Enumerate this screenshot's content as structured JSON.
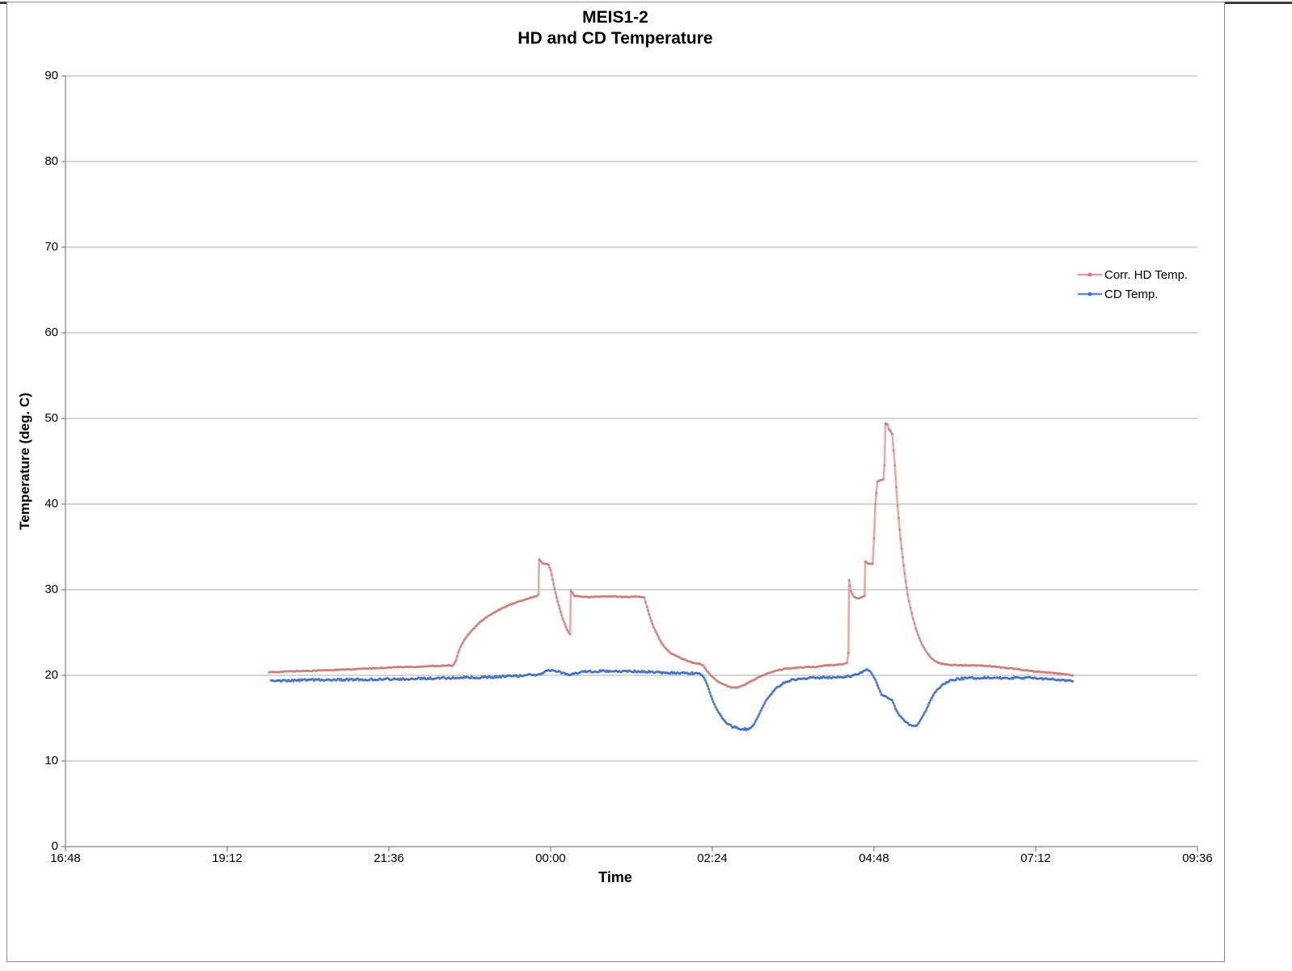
{
  "chart": {
    "title_line1": "MEIS1-2",
    "title_line2": "HD and CD Temperature",
    "x_axis_title": "Time",
    "y_axis_title": "Temperature (deg. C)"
  },
  "colors": {
    "grid": "#a9a9a9",
    "axis": "#7f7f7f",
    "hd_line": "#df9e9c",
    "hd_marker": "#c47a78",
    "cd_line": "#5b89d2",
    "cd_marker": "#3e6db8"
  },
  "chart_data": {
    "type": "line",
    "title": "MEIS1-2 HD and CD Temperature",
    "xlabel": "Time",
    "ylabel": "Temperature (deg. C)",
    "x_unit": "time of day (hours; values past 24 are after midnight)",
    "xlim_hours": [
      16.8,
      33.6
    ],
    "ylim": [
      0,
      90
    ],
    "y_ticks": [
      0,
      10,
      20,
      30,
      40,
      50,
      60,
      70,
      80,
      90
    ],
    "x_tick_labels": [
      "16:48",
      "19:12",
      "21:36",
      "00:00",
      "02:24",
      "04:48",
      "07:12",
      "09:36"
    ],
    "grid": "horizontal",
    "legend_position": "inside-right",
    "marker": "dot",
    "series": [
      {
        "name": "Corr. HD Temp.",
        "data_name": "corr-hd-temp-series",
        "line_color": "#df9e9c",
        "marker_color": "#c47a78",
        "noise": 0.05,
        "points": [
          [
            19.82,
            20.35
          ],
          [
            20.1,
            20.45
          ],
          [
            20.5,
            20.55
          ],
          [
            20.9,
            20.65
          ],
          [
            21.3,
            20.8
          ],
          [
            21.7,
            20.95
          ],
          [
            22.0,
            21.0
          ],
          [
            22.3,
            21.1
          ],
          [
            22.55,
            21.15
          ],
          [
            22.6,
            21.8
          ],
          [
            22.63,
            22.7
          ],
          [
            22.68,
            23.6
          ],
          [
            22.75,
            24.5
          ],
          [
            22.85,
            25.4
          ],
          [
            22.95,
            26.2
          ],
          [
            23.05,
            26.8
          ],
          [
            23.2,
            27.5
          ],
          [
            23.35,
            28.1
          ],
          [
            23.5,
            28.55
          ],
          [
            23.65,
            28.9
          ],
          [
            23.8,
            29.3
          ],
          [
            23.82,
            29.45
          ],
          [
            23.83,
            33.55
          ],
          [
            23.88,
            33.1
          ],
          [
            23.93,
            33.0
          ],
          [
            23.97,
            32.9
          ],
          [
            24.0,
            32.3
          ],
          [
            24.03,
            31.2
          ],
          [
            24.06,
            30.1
          ],
          [
            24.09,
            29.1
          ],
          [
            24.12,
            28.2
          ],
          [
            24.15,
            27.4
          ],
          [
            24.18,
            26.6
          ],
          [
            24.21,
            26.0
          ],
          [
            24.24,
            25.4
          ],
          [
            24.27,
            25.0
          ],
          [
            24.29,
            24.8
          ],
          [
            24.3,
            29.9
          ],
          [
            24.35,
            29.3
          ],
          [
            24.45,
            29.2
          ],
          [
            24.6,
            29.15
          ],
          [
            24.8,
            29.2
          ],
          [
            25.0,
            29.2
          ],
          [
            25.15,
            29.15
          ],
          [
            25.3,
            29.2
          ],
          [
            25.39,
            29.1
          ],
          [
            25.43,
            28.0
          ],
          [
            25.48,
            26.7
          ],
          [
            25.53,
            25.6
          ],
          [
            25.58,
            24.8
          ],
          [
            25.63,
            24.0
          ],
          [
            25.7,
            23.2
          ],
          [
            25.78,
            22.6
          ],
          [
            25.88,
            22.2
          ],
          [
            26.0,
            21.8
          ],
          [
            26.1,
            21.5
          ],
          [
            26.2,
            21.35
          ],
          [
            26.26,
            21.2
          ],
          [
            26.32,
            20.5
          ],
          [
            26.4,
            19.8
          ],
          [
            26.48,
            19.3
          ],
          [
            26.57,
            18.9
          ],
          [
            26.68,
            18.6
          ],
          [
            26.78,
            18.6
          ],
          [
            26.88,
            18.9
          ],
          [
            27.0,
            19.4
          ],
          [
            27.12,
            19.9
          ],
          [
            27.25,
            20.3
          ],
          [
            27.38,
            20.6
          ],
          [
            27.47,
            20.75
          ],
          [
            27.67,
            20.9
          ],
          [
            27.95,
            21.0
          ],
          [
            28.07,
            21.15
          ],
          [
            28.2,
            21.2
          ],
          [
            28.34,
            21.3
          ],
          [
            28.4,
            21.45
          ],
          [
            28.42,
            22.6
          ],
          [
            28.43,
            31.15
          ],
          [
            28.46,
            29.8
          ],
          [
            28.5,
            29.15
          ],
          [
            28.56,
            29.0
          ],
          [
            28.62,
            29.1
          ],
          [
            28.66,
            29.3
          ],
          [
            28.67,
            33.3
          ],
          [
            28.72,
            33.05
          ],
          [
            28.78,
            33.0
          ],
          [
            28.8,
            36.0
          ],
          [
            28.82,
            40.0
          ],
          [
            28.85,
            42.6
          ],
          [
            28.9,
            42.8
          ],
          [
            28.94,
            42.9
          ],
          [
            28.955,
            44.5
          ],
          [
            28.97,
            49.45
          ],
          [
            29.0,
            49.3
          ],
          [
            29.02,
            48.8
          ],
          [
            29.05,
            48.45
          ],
          [
            29.07,
            48.2
          ],
          [
            29.09,
            46.3
          ],
          [
            29.11,
            44.5
          ],
          [
            29.13,
            42.0
          ],
          [
            29.15,
            39.8
          ],
          [
            29.18,
            37.0
          ],
          [
            29.21,
            34.8
          ],
          [
            29.24,
            32.8
          ],
          [
            29.27,
            31.0
          ],
          [
            29.3,
            29.4
          ],
          [
            29.34,
            27.9
          ],
          [
            29.38,
            26.6
          ],
          [
            29.42,
            25.5
          ],
          [
            29.47,
            24.4
          ],
          [
            29.52,
            23.5
          ],
          [
            29.58,
            22.7
          ],
          [
            29.64,
            22.1
          ],
          [
            29.7,
            21.7
          ],
          [
            29.78,
            21.4
          ],
          [
            29.88,
            21.25
          ],
          [
            30.0,
            21.2
          ],
          [
            30.3,
            21.15
          ],
          [
            30.5,
            21.1
          ],
          [
            30.8,
            20.85
          ],
          [
            31.0,
            20.65
          ],
          [
            31.2,
            20.45
          ],
          [
            31.4,
            20.3
          ],
          [
            31.55,
            20.2
          ],
          [
            31.67,
            20.1
          ],
          [
            31.75,
            20.0
          ]
        ]
      },
      {
        "name": "CD Temp.",
        "data_name": "cd-temp-series",
        "line_color": "#5b89d2",
        "marker_color": "#3e6db8",
        "noise": 0.12,
        "points": [
          [
            19.85,
            19.35
          ],
          [
            20.2,
            19.4
          ],
          [
            20.6,
            19.45
          ],
          [
            21.0,
            19.5
          ],
          [
            21.5,
            19.55
          ],
          [
            22.0,
            19.6
          ],
          [
            22.5,
            19.7
          ],
          [
            22.9,
            19.75
          ],
          [
            23.3,
            19.85
          ],
          [
            23.6,
            19.95
          ],
          [
            23.85,
            20.15
          ],
          [
            23.95,
            20.5
          ],
          [
            24.02,
            20.65
          ],
          [
            24.1,
            20.45
          ],
          [
            24.18,
            20.25
          ],
          [
            24.28,
            20.1
          ],
          [
            24.4,
            20.3
          ],
          [
            24.55,
            20.45
          ],
          [
            24.75,
            20.5
          ],
          [
            25.0,
            20.5
          ],
          [
            25.3,
            20.45
          ],
          [
            25.6,
            20.35
          ],
          [
            25.9,
            20.3
          ],
          [
            26.1,
            20.25
          ],
          [
            26.22,
            20.15
          ],
          [
            26.28,
            19.7
          ],
          [
            26.33,
            18.8
          ],
          [
            26.38,
            17.6
          ],
          [
            26.43,
            16.6
          ],
          [
            26.49,
            15.7
          ],
          [
            26.55,
            15.0
          ],
          [
            26.62,
            14.4
          ],
          [
            26.7,
            14.0
          ],
          [
            26.8,
            13.8
          ],
          [
            26.9,
            13.7
          ],
          [
            26.97,
            13.8
          ],
          [
            27.02,
            14.3
          ],
          [
            27.08,
            15.2
          ],
          [
            27.14,
            16.2
          ],
          [
            27.2,
            17.1
          ],
          [
            27.28,
            17.9
          ],
          [
            27.36,
            18.6
          ],
          [
            27.46,
            19.1
          ],
          [
            27.56,
            19.45
          ],
          [
            27.7,
            19.6
          ],
          [
            27.9,
            19.7
          ],
          [
            28.1,
            19.75
          ],
          [
            28.3,
            19.8
          ],
          [
            28.45,
            19.9
          ],
          [
            28.55,
            20.15
          ],
          [
            28.65,
            20.5
          ],
          [
            28.7,
            20.75
          ],
          [
            28.76,
            20.3
          ],
          [
            28.82,
            19.5
          ],
          [
            28.87,
            18.5
          ],
          [
            28.91,
            17.8
          ],
          [
            28.96,
            17.5
          ],
          [
            29.02,
            17.3
          ],
          [
            29.07,
            17.1
          ],
          [
            29.12,
            16.1
          ],
          [
            29.18,
            15.3
          ],
          [
            29.25,
            14.7
          ],
          [
            29.32,
            14.3
          ],
          [
            29.38,
            14.05
          ],
          [
            29.44,
            14.15
          ],
          [
            29.5,
            14.9
          ],
          [
            29.57,
            15.9
          ],
          [
            29.64,
            17.1
          ],
          [
            29.72,
            18.2
          ],
          [
            29.82,
            18.9
          ],
          [
            29.93,
            19.4
          ],
          [
            30.05,
            19.6
          ],
          [
            30.3,
            19.7
          ],
          [
            30.6,
            19.7
          ],
          [
            30.9,
            19.7
          ],
          [
            31.2,
            19.65
          ],
          [
            31.45,
            19.55
          ],
          [
            31.62,
            19.45
          ],
          [
            31.75,
            19.4
          ]
        ]
      }
    ]
  }
}
